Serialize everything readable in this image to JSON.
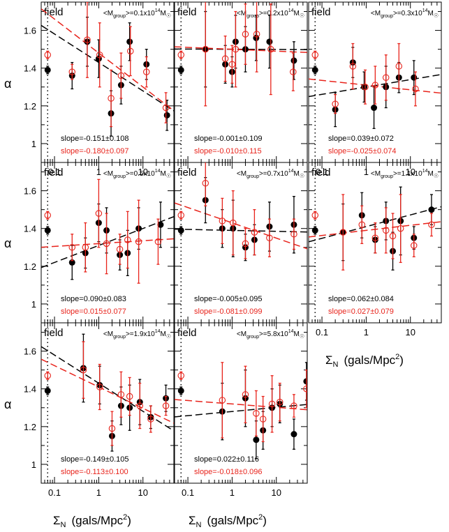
{
  "figure": {
    "ylabel": "α",
    "xlabel_sigma": "Σ",
    "xlabel_sub": "N",
    "xlabel_units": "(gals/Mpc",
    "xlabel_pow": "2",
    "xlabel_close": ")"
  },
  "colors": {
    "black": "#000000",
    "red": "#e8231b"
  },
  "chart_data": [
    {
      "type": "scatter",
      "panel_label": "field",
      "title_pre": "<M",
      "title_sub": "group",
      "title_mid": ">=0.1x10",
      "title_sup": "14",
      "title_post": "M",
      "title_sun": "☉",
      "xscale": "log",
      "xlim": [
        0.05,
        50
      ],
      "ylim": [
        0.9,
        1.75
      ],
      "x_ticklabels": [
        "0.1",
        "1",
        "10"
      ],
      "y_ticklabels": [
        "1",
        "1.2",
        "1.4",
        "1.6"
      ],
      "field_x": 0.07,
      "field_black": {
        "y": 1.39,
        "err": 0.02
      },
      "field_red": {
        "y": 1.47,
        "err": 0.02
      },
      "black": {
        "x": [
          0.25,
          0.55,
          1.0,
          1.9,
          3.2,
          5.0,
          12,
          35
        ],
        "y": [
          1.36,
          1.54,
          1.45,
          1.16,
          1.31,
          1.54,
          1.42,
          1.15
        ],
        "err": [
          0.07,
          0.13,
          0.1,
          0.12,
          0.1,
          0.1,
          0.08,
          0.08
        ]
      },
      "red": {
        "x": [
          0.25,
          0.55,
          1.05,
          1.9,
          3.2,
          5.2,
          12,
          33
        ],
        "y": [
          1.38,
          1.55,
          1.47,
          1.24,
          1.36,
          1.49,
          1.38,
          1.19
        ],
        "err": [
          0.04,
          0.2,
          0.17,
          0.15,
          0.12,
          0.13,
          0.08,
          0.08
        ]
      },
      "fit_black": {
        "slope": -0.151,
        "at1": 1.43
      },
      "fit_red": {
        "slope": -0.18,
        "at1": 1.48
      },
      "slope_black": "slope=-0.151±0.108",
      "slope_red": "slope=-0.180±0.097"
    },
    {
      "type": "scatter",
      "panel_label": "field",
      "title_pre": "<M",
      "title_sub": "group",
      "title_mid": ">=0.2x10",
      "title_sup": "14",
      "title_post": "M",
      "title_sun": "☉",
      "xscale": "log",
      "xlim": [
        0.05,
        50
      ],
      "ylim": [
        0.9,
        1.75
      ],
      "x_ticklabels": [],
      "y_ticklabels": [],
      "field_x": 0.07,
      "field_black": {
        "y": 1.39,
        "err": 0.02
      },
      "field_red": {
        "y": 1.47,
        "err": 0.02
      },
      "black": {
        "x": [
          0.25,
          0.7,
          1.0,
          1.2,
          2.0,
          3.5,
          7.0,
          25
        ],
        "y": [
          1.5,
          1.42,
          1.38,
          1.54,
          1.5,
          1.56,
          1.54,
          1.44
        ],
        "err": [
          0.2,
          0.1,
          0.08,
          0.14,
          0.12,
          0.12,
          0.14,
          0.1
        ]
      },
      "red": {
        "x": [
          0.25,
          0.7,
          1.0,
          1.2,
          2.0,
          3.6,
          7.5,
          24
        ],
        "y": [
          1.5,
          1.45,
          1.42,
          1.5,
          1.58,
          1.58,
          1.5,
          1.38
        ],
        "err": [
          0.3,
          0.12,
          0.1,
          0.2,
          0.16,
          0.2,
          0.24,
          0.1
        ]
      },
      "fit_black": {
        "slope": -0.001,
        "at1": 1.5
      },
      "fit_red": {
        "slope": -0.01,
        "at1": 1.5
      },
      "slope_black": "slope=-0.001±0.109",
      "slope_red": "slope=-0.010±0.115"
    },
    {
      "type": "scatter",
      "panel_label": "field",
      "title_pre": "<M",
      "title_sub": "group",
      "title_mid": ">=0.3x10",
      "title_sup": "14",
      "title_post": "M",
      "title_sun": "☉",
      "xscale": "log",
      "xlim": [
        0.05,
        50
      ],
      "ylim": [
        0.9,
        1.75
      ],
      "x_ticklabels": [
        "0.1",
        "1",
        "10"
      ],
      "y_ticklabels": [],
      "field_x": 0.07,
      "field_black": {
        "y": 1.39,
        "err": 0.02
      },
      "field_red": {
        "y": 1.47,
        "err": 0.02
      },
      "black": {
        "x": [
          0.2,
          0.5,
          0.9,
          1.5,
          2.8,
          5.5,
          12
        ],
        "y": [
          1.18,
          1.43,
          1.3,
          1.19,
          1.3,
          1.35,
          1.35
        ],
        "err": [
          0.09,
          0.08,
          0.08,
          0.11,
          0.11,
          0.08,
          0.09
        ]
      },
      "red": {
        "x": [
          0.2,
          0.5,
          0.95,
          1.6,
          2.8,
          5.5,
          13
        ],
        "y": [
          1.21,
          1.41,
          1.3,
          1.31,
          1.35,
          1.41,
          1.29
        ],
        "err": [
          0.05,
          0.12,
          0.09,
          0.1,
          0.12,
          0.12,
          0.09
        ]
      },
      "fit_black": {
        "slope": 0.039,
        "at1": 1.3
      },
      "fit_red": {
        "slope": -0.025,
        "at1": 1.31
      },
      "slope_black": "slope=0.039±0.072",
      "slope_red": "slope=-0.025±0.074"
    },
    {
      "type": "scatter",
      "panel_label": "field",
      "title_pre": "<M",
      "title_sub": "group",
      "title_mid": ">=0.5x10",
      "title_sup": "14",
      "title_post": "M",
      "title_sun": "☉",
      "xscale": "log",
      "xlim": [
        0.05,
        50
      ],
      "ylim": [
        0.9,
        1.75
      ],
      "x_ticklabels": [],
      "y_ticklabels": [
        "1",
        "1.2",
        "1.4",
        "1.6"
      ],
      "field_x": 0.07,
      "field_black": {
        "y": 1.39,
        "err": 0.02
      },
      "field_red": {
        "y": 1.47,
        "err": 0.02
      },
      "black": {
        "x": [
          0.25,
          0.5,
          1.0,
          1.5,
          3.0,
          4.5,
          8.0,
          25
        ],
        "y": [
          1.22,
          1.27,
          1.43,
          1.39,
          1.26,
          1.27,
          1.4,
          1.42
        ],
        "err": [
          0.09,
          0.08,
          0.1,
          0.12,
          0.08,
          0.12,
          0.11,
          0.12
        ]
      },
      "red": {
        "x": [
          0.25,
          0.5,
          1.0,
          1.5,
          3.0,
          4.5,
          8.0,
          22
        ],
        "y": [
          1.3,
          1.3,
          1.48,
          1.32,
          1.29,
          1.34,
          1.33,
          1.33
        ],
        "err": [
          0.07,
          0.13,
          0.18,
          0.16,
          0.08,
          0.15,
          0.22,
          0.12
        ]
      },
      "fit_black": {
        "slope": 0.09,
        "at1": 1.31
      },
      "fit_red": {
        "slope": 0.015,
        "at1": 1.32
      },
      "slope_black": "slope=0.090±0.083",
      "slope_red": "slope=0.015±0.077"
    },
    {
      "type": "scatter",
      "panel_label": "field",
      "title_pre": "<M",
      "title_sub": "group",
      "title_mid": ">=0.7x10",
      "title_sup": "14",
      "title_post": "M",
      "title_sun": "☉",
      "xscale": "log",
      "xlim": [
        0.05,
        50
      ],
      "ylim": [
        0.9,
        1.75
      ],
      "x_ticklabels": [],
      "y_ticklabels": [],
      "field_x": 0.07,
      "field_black": {
        "y": 1.39,
        "err": 0.02
      },
      "field_red": {
        "y": 1.47,
        "err": 0.02
      },
      "black": {
        "x": [
          0.25,
          0.6,
          1.05,
          2.0,
          3.2,
          7.0,
          25
        ],
        "y": [
          1.55,
          1.4,
          1.4,
          1.3,
          1.34,
          1.41,
          1.42
        ],
        "err": [
          0.12,
          0.1,
          0.15,
          0.07,
          0.08,
          0.13,
          0.15
        ]
      },
      "red": {
        "x": [
          0.25,
          0.6,
          1.05,
          2.0,
          3.2,
          7.0,
          25
        ],
        "y": [
          1.64,
          1.44,
          1.43,
          1.32,
          1.38,
          1.35,
          1.37
        ],
        "err": [
          0.12,
          0.12,
          0.17,
          0.08,
          0.12,
          0.1,
          0.08
        ]
      },
      "fit_black": {
        "slope": -0.005,
        "at1": 1.39
      },
      "fit_red": {
        "slope": -0.081,
        "at1": 1.43
      },
      "slope_black": "slope=-0.005±0.095",
      "slope_red": "slope=-0.081±0.099"
    },
    {
      "type": "scatter",
      "panel_label": "field",
      "title_pre": "<M",
      "title_sub": "group",
      "title_mid": ">=1.1x10",
      "title_sup": "14",
      "title_post": "M",
      "title_sun": "☉",
      "xscale": "log",
      "xlim": [
        0.05,
        50
      ],
      "ylim": [
        0.9,
        1.75
      ],
      "x_ticklabels": [
        "0.1",
        "1",
        "10"
      ],
      "y_ticklabels": [],
      "field_x": 0.07,
      "field_black": {
        "y": 1.39,
        "err": 0.02
      },
      "field_red": {
        "y": 1.47,
        "err": 0.02
      },
      "black": {
        "x": [
          0.3,
          0.8,
          1.6,
          2.8,
          4.0,
          6.0,
          12,
          30
        ],
        "y": [
          1.38,
          1.47,
          1.34,
          1.44,
          1.28,
          1.44,
          1.35,
          1.5
        ],
        "err": [
          0.15,
          0.12,
          0.07,
          0.1,
          0.1,
          0.18,
          0.06,
          0.08
        ]
      },
      "red": {
        "x": [
          0.3,
          0.8,
          1.6,
          2.8,
          4.0,
          6.0,
          12,
          30
        ],
        "y": [
          1.38,
          1.42,
          1.35,
          1.39,
          1.36,
          1.4,
          1.31,
          1.42
        ],
        "err": [
          0.2,
          0.1,
          0.08,
          0.12,
          0.12,
          0.18,
          0.06,
          0.06
        ]
      },
      "fit_black": {
        "slope": 0.062,
        "at1": 1.41
      },
      "fit_red": {
        "slope": 0.027,
        "at1": 1.39
      },
      "slope_black": "slope=0.062±0.084",
      "slope_red": "slope=0.027±0.079"
    },
    {
      "type": "scatter",
      "panel_label": "field",
      "title_pre": "<M",
      "title_sub": "group",
      "title_mid": ">=1.9x10",
      "title_sup": "14",
      "title_post": "M",
      "title_sun": "☉",
      "xscale": "log",
      "xlim": [
        0.05,
        50
      ],
      "ylim": [
        0.9,
        1.75
      ],
      "x_ticklabels": [
        "0.1",
        "1",
        "10"
      ],
      "y_ticklabels": [
        "1",
        "1.2",
        "1.4",
        "1.6"
      ],
      "field_x": 0.07,
      "field_black": {
        "y": 1.39,
        "err": 0.02
      },
      "field_red": {
        "y": 1.47,
        "err": 0.02
      },
      "black": {
        "x": [
          0.45,
          1.05,
          2.0,
          3.2,
          5.0,
          8.5,
          15,
          33
        ],
        "y": [
          1.51,
          1.42,
          1.15,
          1.31,
          1.3,
          1.33,
          1.25,
          1.35
        ],
        "err": [
          0.18,
          0.1,
          0.08,
          0.1,
          0.12,
          0.12,
          0.06,
          0.07
        ]
      },
      "red": {
        "x": [
          0.45,
          1.05,
          2.0,
          3.2,
          5.0,
          8.5,
          15,
          33
        ],
        "y": [
          1.5,
          1.41,
          1.19,
          1.37,
          1.36,
          1.31,
          1.24,
          1.31
        ],
        "err": [
          0.15,
          0.12,
          0.09,
          0.12,
          0.1,
          0.12,
          0.07,
          0.05
        ]
      },
      "fit_black": {
        "slope": -0.149,
        "at1": 1.43
      },
      "fit_red": {
        "slope": -0.113,
        "at1": 1.41
      },
      "slope_black": "slope=-0.149±0.105",
      "slope_red": "slope=-0.113±0.100"
    },
    {
      "type": "scatter",
      "panel_label": "field",
      "title_pre": "<M",
      "title_sub": "group",
      "title_mid": ">=5.8x10",
      "title_sup": "14",
      "title_post": "M",
      "title_sun": "☉",
      "xscale": "log",
      "xlim": [
        0.05,
        50
      ],
      "ylim": [
        0.9,
        1.75
      ],
      "x_ticklabels": [
        "0.1",
        "1",
        "10"
      ],
      "y_ticklabels": [],
      "field_x": 0.07,
      "field_black": {
        "y": 1.39,
        "err": 0.02
      },
      "field_red": {
        "y": 1.47,
        "err": 0.02
      },
      "black": {
        "x": [
          0.6,
          2.0,
          3.5,
          5.0,
          8.0,
          12,
          25,
          48
        ],
        "y": [
          1.28,
          1.35,
          1.13,
          1.18,
          1.3,
          1.32,
          1.16,
          1.44
        ],
        "err": [
          0.15,
          0.15,
          0.1,
          0.1,
          0.1,
          0.1,
          0.08,
          0.1
        ]
      },
      "red": {
        "x": [
          0.6,
          2.0,
          3.5,
          5.0,
          8.0,
          12,
          25,
          48
        ],
        "y": [
          1.34,
          1.37,
          1.27,
          1.24,
          1.32,
          1.33,
          1.31,
          1.4
        ],
        "err": [
          0.2,
          0.15,
          0.12,
          0.12,
          0.15,
          0.1,
          0.06,
          0.1
        ]
      },
      "fit_black": {
        "slope": 0.022,
        "at1": 1.28
      },
      "fit_red": {
        "slope": -0.018,
        "at1": 1.32
      },
      "slope_black": "slope=0.022±0.116",
      "slope_red": "slope=-0.018±0.096"
    }
  ]
}
